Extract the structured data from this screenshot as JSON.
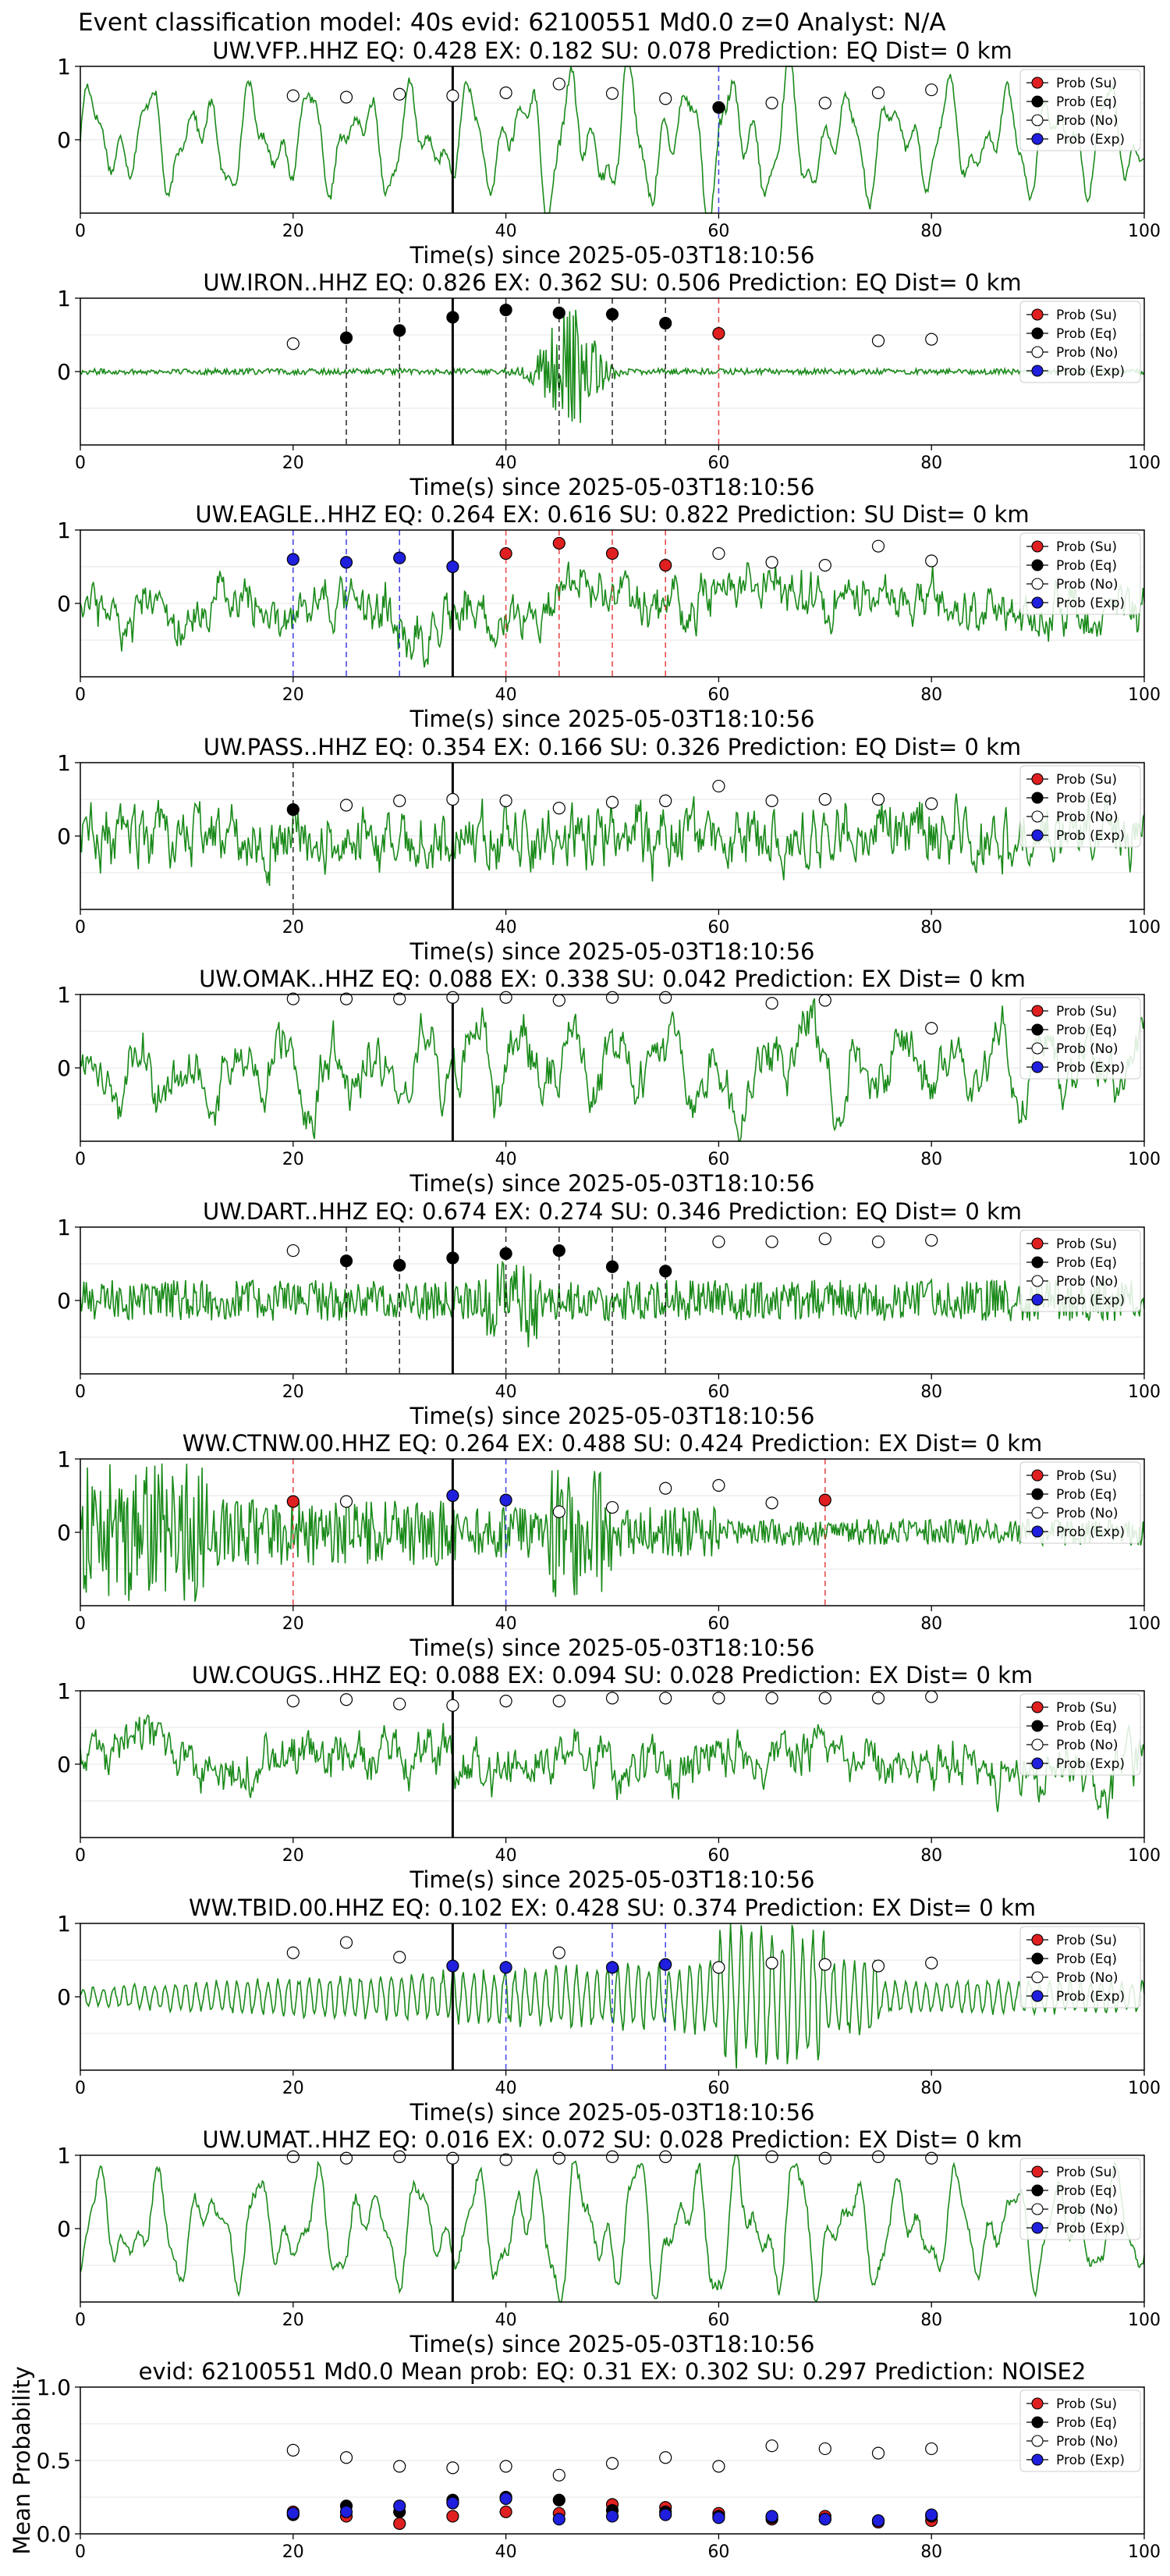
{
  "figure_title": "Event classification model: 40s evid: 62100551 Md0.0 z=0 Analyst: N/A",
  "colors": {
    "waveform": "#1a8a1a",
    "su": "#e02020",
    "eq": "#000000",
    "no": "#ffffff",
    "exp": "#1f1fdd",
    "origin_line": "#000000"
  },
  "legend_labels": [
    "Prob (Su)",
    "Prob (Eq)",
    "Prob (No)",
    "Prob (Exp)"
  ],
  "chart_data": [
    {
      "type": "line",
      "title": "UW.VFP..HHZ   EQ: 0.428  EX: 0.182  SU: 0.078   Prediction: EQ    Dist= 0 km",
      "xlabel": "Time(s) since 2025-05-03T18:10:56",
      "ylabel": "",
      "xlim": [
        0,
        100
      ],
      "ylim": [
        -1,
        1
      ],
      "xticks": [
        "0",
        "20",
        "40",
        "60",
        "80",
        "100"
      ],
      "yticks": [
        "0",
        "1"
      ],
      "origin_time": 35,
      "waveform_style": "smooth",
      "dashed_lines": [
        {
          "x": 60,
          "color": "exp"
        }
      ],
      "series": [
        {
          "name": "Prob (Su)",
          "x": [],
          "values": []
        },
        {
          "name": "Prob (Eq)",
          "x": [
            60
          ],
          "values": [
            0.44
          ]
        },
        {
          "name": "Prob (No)",
          "x": [
            20,
            25,
            30,
            35,
            40,
            45,
            50,
            55,
            65,
            70,
            75,
            80
          ],
          "values": [
            0.6,
            0.58,
            0.62,
            0.6,
            0.64,
            0.76,
            0.63,
            0.56,
            0.5,
            0.5,
            0.64,
            0.68
          ]
        },
        {
          "name": "Prob (Exp)",
          "x": [],
          "values": []
        }
      ]
    },
    {
      "type": "line",
      "title": "UW.IRON..HHZ   EQ: 0.826  EX: 0.362  SU: 0.506   Prediction: EQ    Dist= 0 km",
      "xlabel": "Time(s) since 2025-05-03T18:10:56",
      "ylabel": "",
      "xlim": [
        0,
        100
      ],
      "ylim": [
        -1,
        1
      ],
      "xticks": [
        "0",
        "20",
        "40",
        "60",
        "80",
        "100"
      ],
      "yticks": [
        "0",
        "1"
      ],
      "origin_time": 35,
      "waveform_style": "quiet_burst",
      "dashed_lines": [
        {
          "x": 25,
          "color": "eq"
        },
        {
          "x": 30,
          "color": "eq"
        },
        {
          "x": 40,
          "color": "eq"
        },
        {
          "x": 45,
          "color": "eq"
        },
        {
          "x": 50,
          "color": "eq"
        },
        {
          "x": 55,
          "color": "eq"
        },
        {
          "x": 60,
          "color": "su"
        }
      ],
      "series": [
        {
          "name": "Prob (Su)",
          "x": [
            60
          ],
          "values": [
            0.52
          ]
        },
        {
          "name": "Prob (Eq)",
          "x": [
            25,
            30,
            35,
            40,
            45,
            50,
            55
          ],
          "values": [
            0.46,
            0.56,
            0.74,
            0.84,
            0.8,
            0.78,
            0.66
          ]
        },
        {
          "name": "Prob (No)",
          "x": [
            20,
            75,
            80
          ],
          "values": [
            0.38,
            0.42,
            0.44
          ]
        },
        {
          "name": "Prob (Exp)",
          "x": [],
          "values": []
        }
      ]
    },
    {
      "type": "line",
      "title": "UW.EAGLE..HHZ   EQ: 0.264  EX: 0.616  SU: 0.822   Prediction: SU    Dist= 0 km",
      "xlabel": "Time(s) since 2025-05-03T18:10:56",
      "ylabel": "",
      "xlim": [
        0,
        100
      ],
      "ylim": [
        -1,
        1
      ],
      "xticks": [
        "0",
        "20",
        "40",
        "60",
        "80",
        "100"
      ],
      "yticks": [
        "0",
        "1"
      ],
      "origin_time": 35,
      "waveform_style": "noisy",
      "dashed_lines": [
        {
          "x": 20,
          "color": "exp"
        },
        {
          "x": 25,
          "color": "exp"
        },
        {
          "x": 30,
          "color": "exp"
        },
        {
          "x": 40,
          "color": "su"
        },
        {
          "x": 45,
          "color": "su"
        },
        {
          "x": 50,
          "color": "su"
        },
        {
          "x": 55,
          "color": "su"
        }
      ],
      "series": [
        {
          "name": "Prob (Su)",
          "x": [
            40,
            45,
            50,
            55
          ],
          "values": [
            0.68,
            0.82,
            0.68,
            0.52
          ]
        },
        {
          "name": "Prob (Eq)",
          "x": [],
          "values": []
        },
        {
          "name": "Prob (No)",
          "x": [
            60,
            65,
            70,
            75,
            80
          ],
          "values": [
            0.68,
            0.56,
            0.52,
            0.78,
            0.58
          ]
        },
        {
          "name": "Prob (Exp)",
          "x": [
            20,
            25,
            30,
            35
          ],
          "values": [
            0.6,
            0.56,
            0.62,
            0.5
          ]
        }
      ]
    },
    {
      "type": "line",
      "title": "UW.PASS..HHZ   EQ: 0.354  EX: 0.166  SU: 0.326   Prediction: EQ    Dist= 0 km",
      "xlabel": "Time(s) since 2025-05-03T18:10:56",
      "ylabel": "",
      "xlim": [
        0,
        100
      ],
      "ylim": [
        -1,
        1
      ],
      "xticks": [
        "0",
        "20",
        "40",
        "60",
        "80",
        "100"
      ],
      "yticks": [
        "0",
        "1"
      ],
      "origin_time": 35,
      "waveform_style": "noisy_big",
      "dashed_lines": [
        {
          "x": 20,
          "color": "eq"
        }
      ],
      "series": [
        {
          "name": "Prob (Su)",
          "x": [],
          "values": []
        },
        {
          "name": "Prob (Eq)",
          "x": [
            20
          ],
          "values": [
            0.36
          ]
        },
        {
          "name": "Prob (No)",
          "x": [
            25,
            30,
            35,
            40,
            45,
            50,
            55,
            60,
            65,
            70,
            75,
            80
          ],
          "values": [
            0.42,
            0.48,
            0.5,
            0.48,
            0.38,
            0.46,
            0.48,
            0.68,
            0.48,
            0.5,
            0.5,
            0.44
          ]
        },
        {
          "name": "Prob (Exp)",
          "x": [],
          "values": []
        }
      ]
    },
    {
      "type": "line",
      "title": "UW.OMAK..HHZ   EQ: 0.088  EX: 0.338  SU: 0.042   Prediction: EX    Dist= 0 km",
      "xlabel": "Time(s) since 2025-05-03T18:10:56",
      "ylabel": "",
      "xlim": [
        0,
        100
      ],
      "ylim": [
        -1,
        1
      ],
      "xticks": [
        "0",
        "20",
        "40",
        "60",
        "80",
        "100"
      ],
      "yticks": [
        "0",
        "1"
      ],
      "origin_time": 35,
      "waveform_style": "medium",
      "dashed_lines": [],
      "series": [
        {
          "name": "Prob (Su)",
          "x": [],
          "values": []
        },
        {
          "name": "Prob (Eq)",
          "x": [],
          "values": []
        },
        {
          "name": "Prob (No)",
          "x": [
            20,
            25,
            30,
            35,
            40,
            45,
            50,
            55,
            65,
            70,
            80
          ],
          "values": [
            0.94,
            0.94,
            0.94,
            0.96,
            0.96,
            0.92,
            0.96,
            0.96,
            0.88,
            0.92,
            0.54
          ]
        },
        {
          "name": "Prob (Exp)",
          "x": [],
          "values": []
        }
      ]
    },
    {
      "type": "line",
      "title": "UW.DART..HHZ   EQ: 0.674  EX: 0.274  SU: 0.346   Prediction: EQ    Dist= 0 km",
      "xlabel": "Time(s) since 2025-05-03T18:10:56",
      "ylabel": "",
      "xlim": [
        0,
        100
      ],
      "ylim": [
        -1,
        1
      ],
      "xticks": [
        "0",
        "20",
        "40",
        "60",
        "80",
        "100"
      ],
      "yticks": [
        "0",
        "1"
      ],
      "origin_time": 35,
      "waveform_style": "noisy_small",
      "dashed_lines": [
        {
          "x": 25,
          "color": "eq"
        },
        {
          "x": 30,
          "color": "eq"
        },
        {
          "x": 40,
          "color": "eq"
        },
        {
          "x": 45,
          "color": "eq"
        },
        {
          "x": 50,
          "color": "eq"
        },
        {
          "x": 55,
          "color": "eq"
        }
      ],
      "series": [
        {
          "name": "Prob (Su)",
          "x": [],
          "values": []
        },
        {
          "name": "Prob (Eq)",
          "x": [
            25,
            30,
            35,
            40,
            45,
            50,
            55
          ],
          "values": [
            0.54,
            0.48,
            0.58,
            0.64,
            0.68,
            0.46,
            0.4
          ]
        },
        {
          "name": "Prob (No)",
          "x": [
            20,
            60,
            65,
            70,
            75,
            80
          ],
          "values": [
            0.68,
            0.8,
            0.8,
            0.84,
            0.8,
            0.82
          ]
        },
        {
          "name": "Prob (Exp)",
          "x": [],
          "values": []
        }
      ]
    },
    {
      "type": "line",
      "title": "WW.CTNW.00.HHZ   EQ: 0.264  EX: 0.488  SU: 0.424   Prediction: EX    Dist= 0 km",
      "xlabel": "Time(s) since 2025-05-03T18:10:56",
      "ylabel": "",
      "xlim": [
        0,
        100
      ],
      "ylim": [
        -1,
        1
      ],
      "xticks": [
        "0",
        "20",
        "40",
        "60",
        "80",
        "100"
      ],
      "yticks": [
        "0",
        "1"
      ],
      "origin_time": 35,
      "waveform_style": "early_burst",
      "dashed_lines": [
        {
          "x": 20,
          "color": "su"
        },
        {
          "x": 40,
          "color": "exp"
        },
        {
          "x": 70,
          "color": "su"
        }
      ],
      "series": [
        {
          "name": "Prob (Su)",
          "x": [
            20,
            70
          ],
          "values": [
            0.42,
            0.44
          ]
        },
        {
          "name": "Prob (Eq)",
          "x": [],
          "values": []
        },
        {
          "name": "Prob (No)",
          "x": [
            25,
            45,
            50,
            55,
            60,
            65
          ],
          "values": [
            0.42,
            0.28,
            0.34,
            0.6,
            0.64,
            0.4
          ]
        },
        {
          "name": "Prob (Exp)",
          "x": [
            35,
            40
          ],
          "values": [
            0.5,
            0.44
          ]
        }
      ]
    },
    {
      "type": "line",
      "title": "UW.COUGS..HHZ   EQ: 0.088  EX: 0.094  SU: 0.028   Prediction: EX    Dist= 0 km",
      "xlabel": "Time(s) since 2025-05-03T18:10:56",
      "ylabel": "",
      "xlim": [
        0,
        100
      ],
      "ylim": [
        -1,
        1
      ],
      "xticks": [
        "0",
        "20",
        "40",
        "60",
        "80",
        "100"
      ],
      "yticks": [
        "0",
        "1"
      ],
      "origin_time": 35,
      "waveform_style": "noisy",
      "dashed_lines": [],
      "series": [
        {
          "name": "Prob (Su)",
          "x": [],
          "values": []
        },
        {
          "name": "Prob (Eq)",
          "x": [],
          "values": []
        },
        {
          "name": "Prob (No)",
          "x": [
            20,
            25,
            30,
            35,
            40,
            45,
            50,
            55,
            60,
            65,
            70,
            75,
            80
          ],
          "values": [
            0.86,
            0.88,
            0.82,
            0.8,
            0.86,
            0.86,
            0.9,
            0.9,
            0.9,
            0.9,
            0.9,
            0.9,
            0.92
          ]
        },
        {
          "name": "Prob (Exp)",
          "x": [],
          "values": []
        }
      ]
    },
    {
      "type": "line",
      "title": "WW.TBID.00.HHZ   EQ: 0.102  EX: 0.428  SU: 0.374   Prediction: EX    Dist= 0 km",
      "xlabel": "Time(s) since 2025-05-03T18:10:56",
      "ylabel": "",
      "xlim": [
        0,
        100
      ],
      "ylim": [
        -1,
        1
      ],
      "xticks": [
        "0",
        "20",
        "40",
        "60",
        "80",
        "100"
      ],
      "yticks": [
        "0",
        "1"
      ],
      "origin_time": 35,
      "waveform_style": "ringing",
      "dashed_lines": [
        {
          "x": 40,
          "color": "exp"
        },
        {
          "x": 50,
          "color": "exp"
        },
        {
          "x": 55,
          "color": "exp"
        }
      ],
      "series": [
        {
          "name": "Prob (Su)",
          "x": [],
          "values": []
        },
        {
          "name": "Prob (Eq)",
          "x": [],
          "values": []
        },
        {
          "name": "Prob (No)",
          "x": [
            20,
            25,
            30,
            45,
            60,
            65,
            70,
            75,
            80
          ],
          "values": [
            0.6,
            0.74,
            0.54,
            0.6,
            0.4,
            0.46,
            0.44,
            0.42,
            0.46
          ]
        },
        {
          "name": "Prob (Exp)",
          "x": [
            35,
            40,
            50,
            55
          ],
          "values": [
            0.42,
            0.4,
            0.4,
            0.44
          ]
        }
      ]
    },
    {
      "type": "line",
      "title": "UW.UMAT..HHZ   EQ: 0.016  EX: 0.072  SU: 0.028   Prediction: EX    Dist= 0 km",
      "xlabel": "Time(s) since 2025-05-03T18:10:56",
      "ylabel": "",
      "xlim": [
        0,
        100
      ],
      "ylim": [
        -1,
        1
      ],
      "xticks": [
        "0",
        "20",
        "40",
        "60",
        "80",
        "100"
      ],
      "yticks": [
        "0",
        "1"
      ],
      "origin_time": 35,
      "waveform_style": "smooth",
      "dashed_lines": [],
      "series": [
        {
          "name": "Prob (Su)",
          "x": [],
          "values": []
        },
        {
          "name": "Prob (Eq)",
          "x": [],
          "values": []
        },
        {
          "name": "Prob (No)",
          "x": [
            20,
            25,
            30,
            35,
            40,
            45,
            50,
            55,
            65,
            70,
            75,
            80
          ],
          "values": [
            0.98,
            0.96,
            0.98,
            0.96,
            0.94,
            0.96,
            0.98,
            0.98,
            0.98,
            0.96,
            0.98,
            0.96
          ]
        },
        {
          "name": "Prob (Exp)",
          "x": [],
          "values": []
        }
      ]
    },
    {
      "type": "scatter",
      "title": "evid: 62100551  Md0.0   Mean prob:   EQ: 0.31  EX: 0.302  SU: 0.297   Prediction: NOISE2",
      "xlabel": "",
      "ylabel": "Mean Probability",
      "xlim": [
        0,
        100
      ],
      "ylim": [
        0,
        1
      ],
      "xticks": [
        "0",
        "20",
        "40",
        "60",
        "80",
        "100"
      ],
      "yticks": [
        "0.0",
        "0.5",
        "1.0"
      ],
      "origin_time": null,
      "waveform_style": null,
      "dashed_lines": [],
      "series": [
        {
          "name": "Prob (Su)",
          "x": [
            20,
            25,
            30,
            35,
            40,
            45,
            50,
            55,
            60,
            65,
            70,
            75,
            80
          ],
          "values": [
            0.15,
            0.12,
            0.07,
            0.12,
            0.15,
            0.14,
            0.2,
            0.18,
            0.14,
            0.1,
            0.12,
            0.08,
            0.09
          ]
        },
        {
          "name": "Prob (Eq)",
          "x": [
            20,
            25,
            30,
            35,
            40,
            45,
            50,
            55,
            60,
            65,
            70,
            75,
            80
          ],
          "values": [
            0.13,
            0.19,
            0.15,
            0.23,
            0.25,
            0.23,
            0.16,
            0.15,
            0.12,
            0.11,
            0.1,
            0.09,
            0.12
          ]
        },
        {
          "name": "Prob (No)",
          "x": [
            20,
            25,
            30,
            35,
            40,
            45,
            50,
            55,
            60,
            65,
            70,
            75,
            80
          ],
          "values": [
            0.57,
            0.52,
            0.46,
            0.45,
            0.46,
            0.4,
            0.48,
            0.52,
            0.46,
            0.6,
            0.58,
            0.55,
            0.58
          ]
        },
        {
          "name": "Prob (Exp)",
          "x": [
            20,
            25,
            30,
            35,
            40,
            45,
            50,
            55,
            60,
            65,
            70,
            75,
            80
          ],
          "values": [
            0.14,
            0.15,
            0.19,
            0.21,
            0.24,
            0.1,
            0.12,
            0.13,
            0.11,
            0.12,
            0.1,
            0.09,
            0.13
          ]
        }
      ]
    }
  ]
}
